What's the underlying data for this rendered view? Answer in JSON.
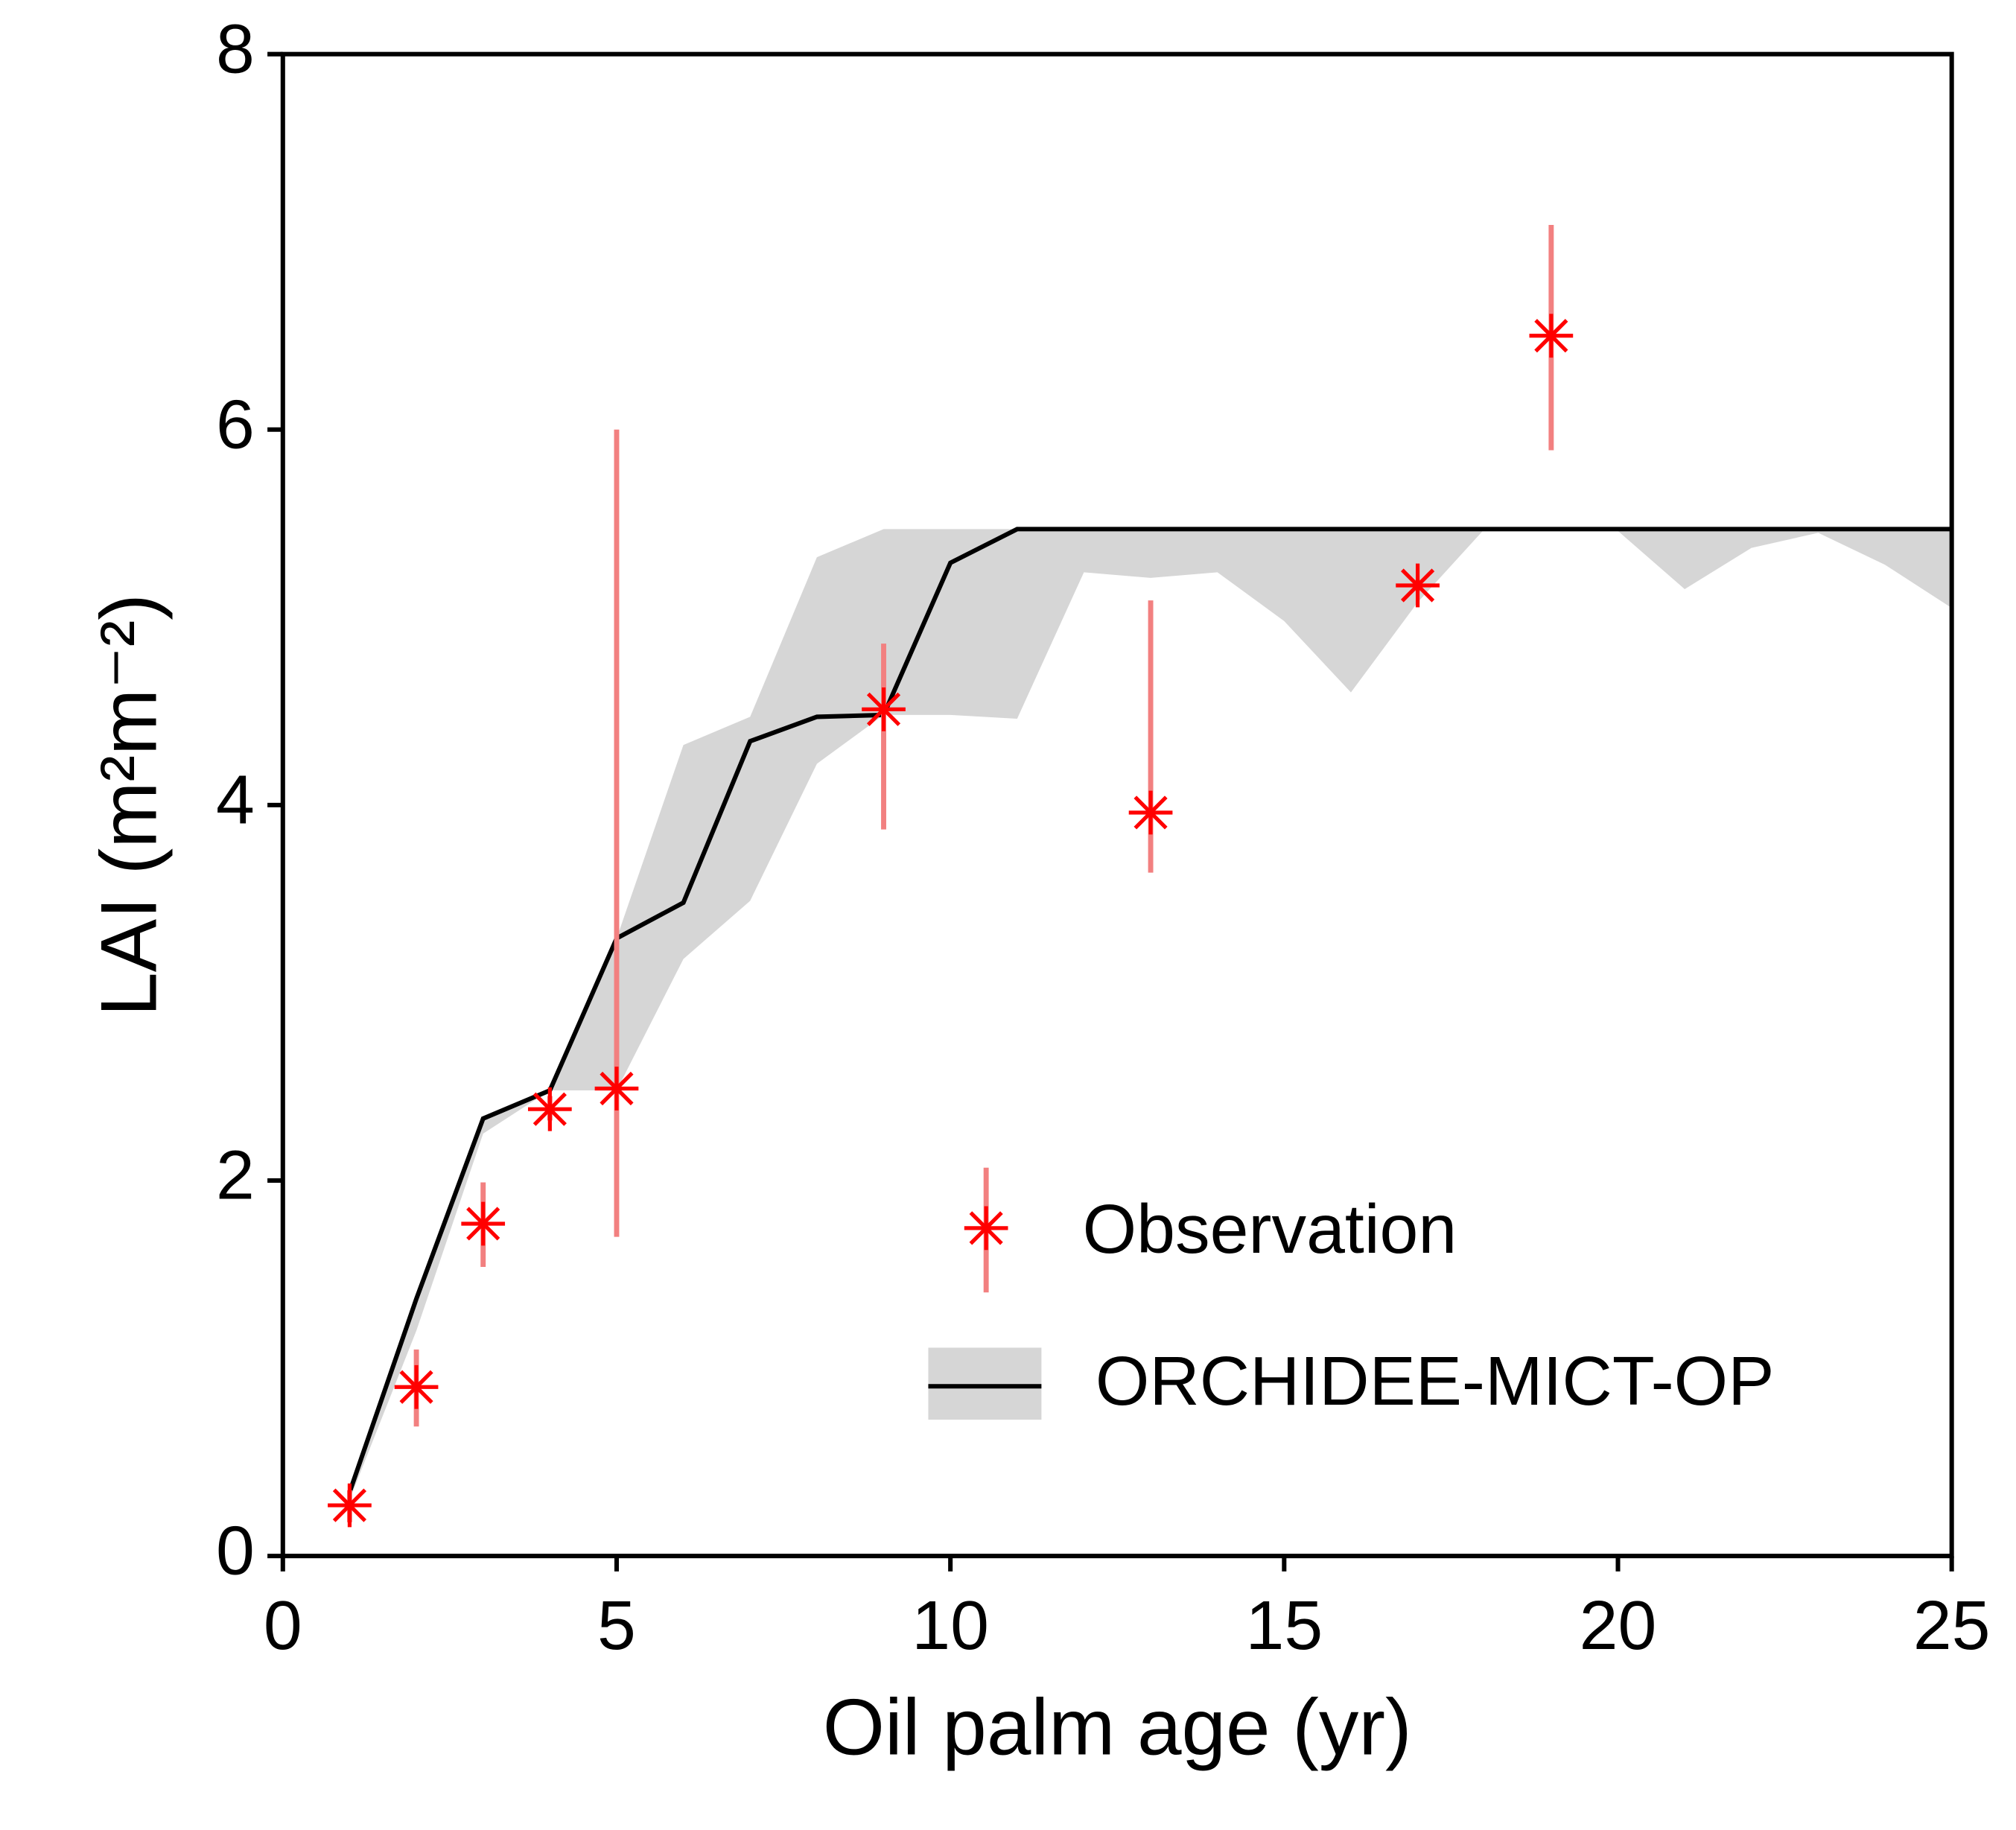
{
  "chart_data": {
    "type": "line",
    "xlabel": "Oil palm age (yr)",
    "ylabel": "LAI (m²m⁻²)",
    "xlim": [
      0,
      25
    ],
    "xticks": [
      0,
      5,
      10,
      15,
      20,
      25
    ],
    "ylim": [
      0,
      8
    ],
    "yticks": [
      0,
      2,
      4,
      6,
      8
    ],
    "legend": "lower right",
    "series": [
      {
        "name": "Observation",
        "type": "errorbar",
        "color": "#ff0000",
        "errcolor": "#f28080",
        "x": [
          1,
          2,
          3,
          4,
          5,
          9,
          13,
          17,
          19
        ],
        "values": [
          0.27,
          0.9,
          1.77,
          2.38,
          2.49,
          4.51,
          3.96,
          5.17,
          6.5
        ],
        "lower": [
          0.18,
          0.69,
          1.54,
          2.32,
          1.7,
          3.87,
          3.64,
          5.14,
          5.89
        ],
        "upper": [
          0.35,
          1.1,
          1.99,
          2.45,
          6.0,
          4.86,
          5.09,
          5.2,
          7.09
        ]
      },
      {
        "name": "ORCHIDEE-MICT-OP",
        "type": "band",
        "color": "#000000",
        "bandcolor": "#d6d6d6",
        "x": [
          1,
          2,
          3,
          4,
          5,
          6,
          7,
          8,
          9,
          10,
          11,
          12,
          13,
          14,
          15,
          16,
          17,
          18,
          19,
          20,
          21,
          22,
          23,
          24,
          25
        ],
        "values": [
          0.34,
          1.37,
          2.33,
          2.48,
          3.29,
          3.48,
          4.34,
          4.47,
          4.48,
          5.29,
          5.47,
          5.47,
          5.47,
          5.47,
          5.47,
          5.47,
          5.47,
          5.47,
          5.47,
          5.47,
          5.47,
          5.47,
          5.47,
          5.47,
          5.47
        ],
        "lower": [
          0.3,
          1.2,
          2.25,
          2.48,
          2.48,
          3.18,
          3.49,
          4.22,
          4.48,
          4.48,
          4.46,
          5.24,
          5.21,
          5.24,
          4.98,
          4.6,
          5.08,
          5.47,
          5.46,
          5.46,
          5.15,
          5.37,
          5.45,
          5.28,
          5.05
        ],
        "upper": [
          0.34,
          1.37,
          2.33,
          2.48,
          3.29,
          4.32,
          4.47,
          5.32,
          5.47,
          5.47,
          5.47,
          5.47,
          5.47,
          5.47,
          5.47,
          5.47,
          5.47,
          5.47,
          5.47,
          5.47,
          5.47,
          5.47,
          5.47,
          5.47,
          5.47
        ]
      }
    ]
  }
}
